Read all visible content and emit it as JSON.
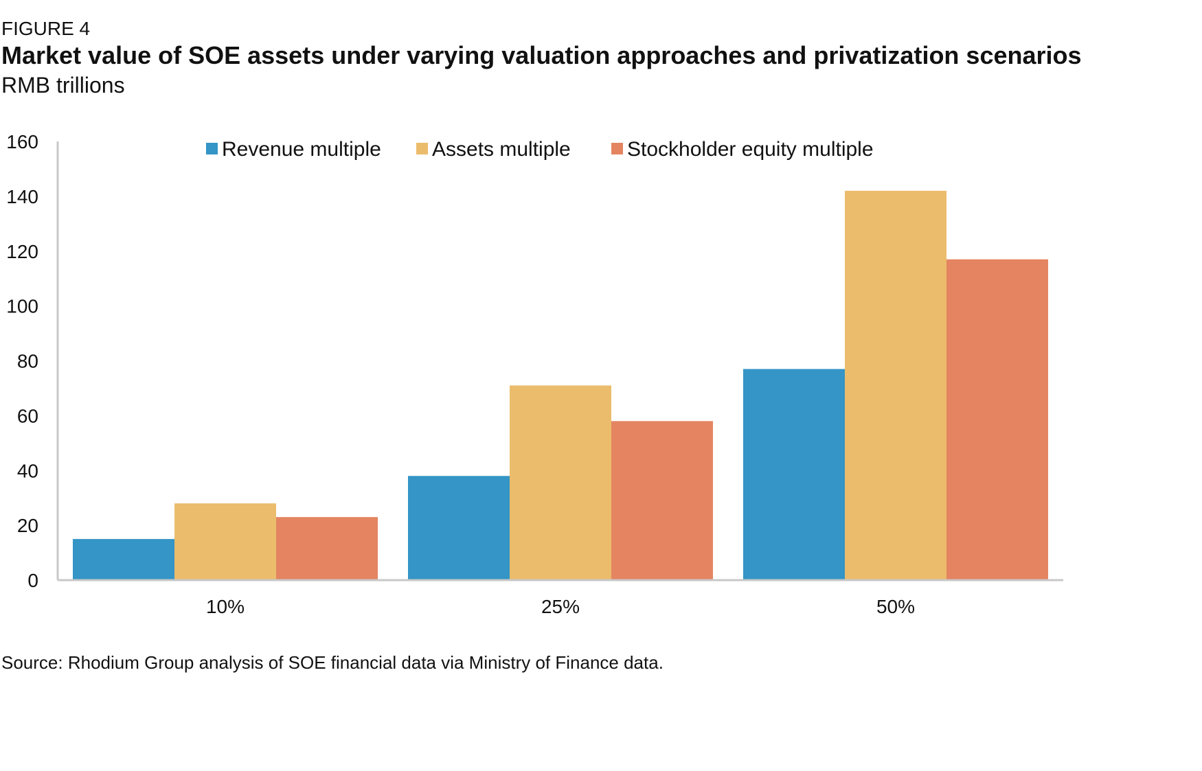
{
  "figure": {
    "label": "FIGURE 4",
    "title": "Market value of SOE assets under varying valuation approaches and privatization scenarios",
    "subtitle": "RMB trillions",
    "source": "Source: Rhodium Group analysis of SOE financial data via Ministry of Finance data."
  },
  "chart_data": {
    "type": "bar",
    "title": "Market value of SOE assets under varying valuation approaches and privatization scenarios",
    "subtitle": "RMB trillions",
    "categories": [
      "10%",
      "25%",
      "50%"
    ],
    "series": [
      {
        "name": "Revenue multiple",
        "color": "#3495C6",
        "values": [
          15,
          38,
          77
        ]
      },
      {
        "name": "Assets multiple",
        "color": "#EBBC6C",
        "values": [
          28,
          71,
          142
        ]
      },
      {
        "name": "Stockholder equity multiple",
        "color": "#E48461",
        "values": [
          23,
          58,
          117
        ]
      }
    ],
    "ylim": [
      0,
      160
    ],
    "yticks": [
      0,
      20,
      40,
      60,
      80,
      100,
      120,
      140,
      160
    ],
    "xlabel": "",
    "ylabel": "",
    "grid": false,
    "legend": "top-center"
  }
}
